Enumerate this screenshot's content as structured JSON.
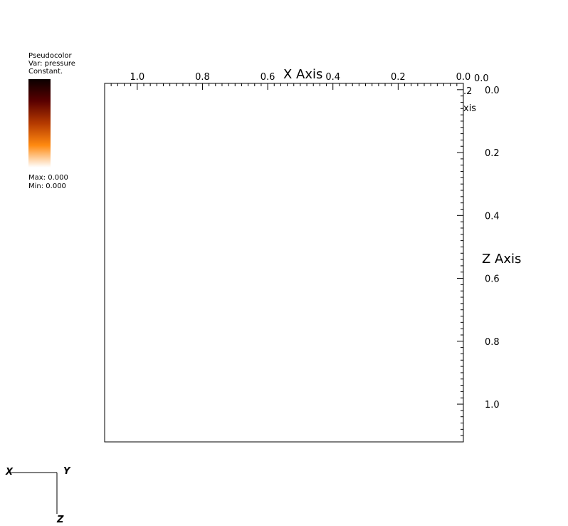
{
  "legend": {
    "plot_type": "Pseudocolor",
    "var_line": "Var: pressure",
    "status": "Constant.",
    "max_text": "Max:  0.000",
    "min_text": "Min:  0.000",
    "colormap": [
      "#0a0000",
      "#5a0000",
      "#b53a00",
      "#ff8a10",
      "#ffffff"
    ]
  },
  "chart_data": {
    "type": "scatter",
    "title": "",
    "points": [],
    "x_axis": {
      "title": "X Axis",
      "range": [
        0.0,
        1.0
      ],
      "reversed": true,
      "ticks": [
        "1.0",
        "0.8",
        "0.6",
        "0.4",
        "0.2",
        "0.0"
      ]
    },
    "y_axis": {
      "title_fragment": "xis",
      "fragment_tick": ".2",
      "corner_label": "0.0"
    },
    "z_axis": {
      "title": "Z Axis",
      "range": [
        0.0,
        1.0
      ],
      "ticks": [
        "0.0",
        "0.2",
        "0.4",
        "0.6",
        "0.8",
        "1.0"
      ]
    },
    "grid": false
  },
  "triad": {
    "x": "X",
    "y": "Y",
    "z": "Z"
  }
}
